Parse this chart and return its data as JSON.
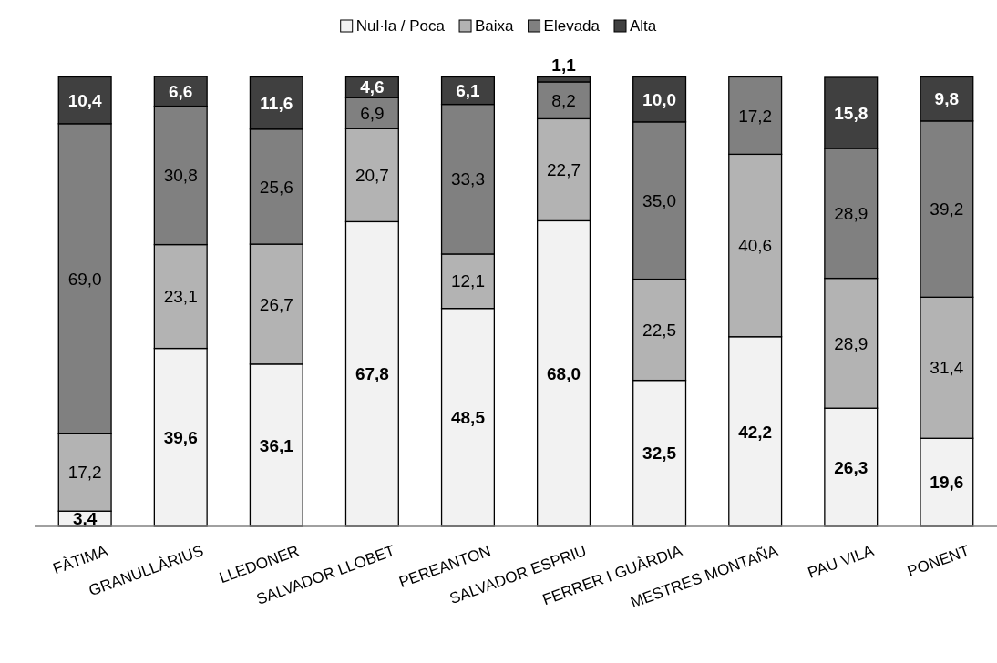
{
  "chart_data": {
    "type": "bar",
    "stacked": true,
    "legend": "top",
    "data_labels": false,
    "categories": [
      "FÀTIMA",
      "GRANULLÀRIUS",
      "LLEDONER",
      "SALVADOR LLOBET",
      "PEREANTON",
      "SALVADOR ESPRIU",
      "FERRER I GUÀRDIA",
      "MESTRES MONTAÑA",
      "PAU VILA",
      "PONENT"
    ],
    "series": [
      {
        "name": "Nul·la / Poca",
        "color": "#f2f2f2",
        "values": [
          3.4,
          39.6,
          36.1,
          67.8,
          48.5,
          68.0,
          32.5,
          42.2,
          26.3,
          19.6
        ],
        "value_labels": [
          "3,4",
          "39,6",
          "36,1",
          "67,8",
          "48,5",
          "68,0",
          "32,5",
          "42,2",
          "26,3",
          "19,6"
        ]
      },
      {
        "name": "Baixa",
        "color": "#b3b3b3",
        "values": [
          17.2,
          23.1,
          26.7,
          20.7,
          12.1,
          22.7,
          22.5,
          40.6,
          28.9,
          31.4
        ],
        "value_labels": [
          "17,2",
          "23,1",
          "26,7",
          "20,7",
          "12,1",
          "22,7",
          "22,5",
          "40,6",
          "28,9",
          "31,4"
        ]
      },
      {
        "name": "Elevada",
        "color": "#808080",
        "values": [
          69.0,
          30.8,
          25.6,
          6.9,
          33.3,
          8.2,
          35.0,
          17.2,
          28.9,
          39.2
        ],
        "value_labels": [
          "69,0",
          "30,8",
          "25,6",
          "6,9",
          "33,3",
          "8,2",
          "35,0",
          "17,2",
          "28,9",
          "39,2"
        ]
      },
      {
        "name": "Alta",
        "color": "#404040",
        "values": [
          10.4,
          6.6,
          11.6,
          4.6,
          6.1,
          1.1,
          10.0,
          0,
          15.8,
          9.8
        ],
        "value_labels": [
          "10,4",
          "6,6",
          "11,6",
          "4,6",
          "6,1",
          "1,1",
          "10,0",
          null,
          "15,8",
          "9,8"
        ]
      }
    ]
  }
}
